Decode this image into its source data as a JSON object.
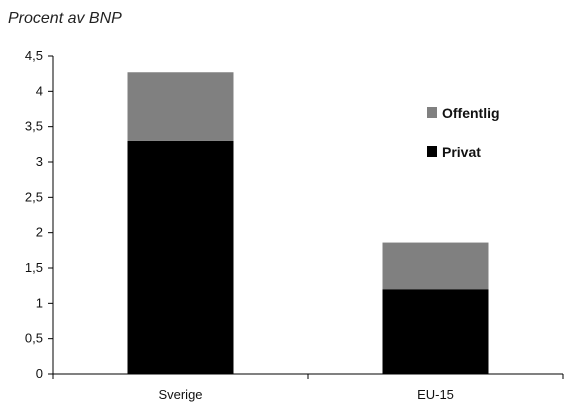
{
  "chart_data": {
    "type": "bar",
    "stacked": true,
    "title": "Procent av BNP",
    "categories": [
      "Sverige",
      "EU-15"
    ],
    "series": [
      {
        "name": "Privat",
        "values": [
          3.3,
          1.2
        ],
        "color": "#000000"
      },
      {
        "name": "Offentlig",
        "values": [
          0.97,
          0.66
        ],
        "color": "#808080"
      }
    ],
    "ylim": [
      0,
      4.5
    ],
    "yticks": [
      "0",
      "0,5",
      "1",
      "1,5",
      "2",
      "2,5",
      "3",
      "3,5",
      "4",
      "4,5"
    ],
    "grid": false,
    "legend": {
      "position": "right",
      "order": [
        "Offentlig",
        "Privat"
      ]
    }
  }
}
